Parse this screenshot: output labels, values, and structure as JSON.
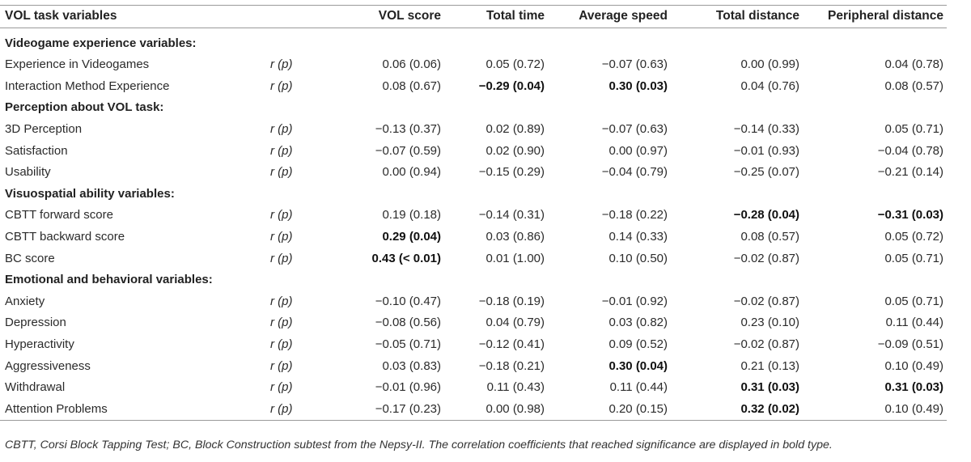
{
  "table": {
    "headers": [
      "VOL task variables",
      "",
      "VOL score",
      "Total time",
      "Average speed",
      "Total distance",
      "Peripheral distance"
    ],
    "sections": [
      {
        "title": "Videogame experience variables:",
        "rows": [
          {
            "label": "Experience in Videogames",
            "stat": "r (p)",
            "values": [
              "0.06 (0.06)",
              "0.05 (0.72)",
              "−0.07 (0.63)",
              "0.00 (0.99)",
              "0.04 (0.78)"
            ],
            "bold": [
              false,
              false,
              false,
              false,
              false
            ]
          },
          {
            "label": "Interaction Method Experience",
            "stat": "r (p)",
            "values": [
              "0.08 (0.67)",
              "−0.29 (0.04)",
              "0.30 (0.03)",
              "0.04 (0.76)",
              "0.08 (0.57)"
            ],
            "bold": [
              false,
              true,
              true,
              false,
              false
            ]
          }
        ]
      },
      {
        "title": "Perception about VOL task:",
        "rows": [
          {
            "label": "3D Perception",
            "stat": "r (p)",
            "values": [
              "−0.13 (0.37)",
              "0.02 (0.89)",
              "−0.07 (0.63)",
              "−0.14 (0.33)",
              "0.05 (0.71)"
            ],
            "bold": [
              false,
              false,
              false,
              false,
              false
            ]
          },
          {
            "label": "Satisfaction",
            "stat": "r (p)",
            "values": [
              "−0.07 (0.59)",
              "0.02 (0.90)",
              "0.00 (0.97)",
              "−0.01 (0.93)",
              "−0.04 (0.78)"
            ],
            "bold": [
              false,
              false,
              false,
              false,
              false
            ]
          },
          {
            "label": "Usability",
            "stat": "r (p)",
            "values": [
              "0.00 (0.94)",
              "−0.15 (0.29)",
              "−0.04 (0.79)",
              "−0.25 (0.07)",
              "−0.21 (0.14)"
            ],
            "bold": [
              false,
              false,
              false,
              false,
              false
            ]
          }
        ]
      },
      {
        "title": "Visuospatial ability variables:",
        "rows": [
          {
            "label": "CBTT forward score",
            "stat": "r (p)",
            "values": [
              "0.19 (0.18)",
              "−0.14 (0.31)",
              "−0.18 (0.22)",
              "−0.28 (0.04)",
              "−0.31 (0.03)"
            ],
            "bold": [
              false,
              false,
              false,
              true,
              true
            ]
          },
          {
            "label": "CBTT backward score",
            "stat": "r (p)",
            "values": [
              "0.29 (0.04)",
              "0.03 (0.86)",
              "0.14 (0.33)",
              "0.08 (0.57)",
              "0.05 (0.72)"
            ],
            "bold": [
              true,
              false,
              false,
              false,
              false
            ]
          },
          {
            "label": "BC score",
            "stat": "r (p)",
            "values": [
              "0.43 (< 0.01)",
              "0.01 (1.00)",
              "0.10 (0.50)",
              "−0.02 (0.87)",
              "0.05 (0.71)"
            ],
            "bold": [
              true,
              false,
              false,
              false,
              false
            ]
          }
        ]
      },
      {
        "title": "Emotional and behavioral variables:",
        "rows": [
          {
            "label": "Anxiety",
            "stat": "r (p)",
            "values": [
              "−0.10 (0.47)",
              "−0.18 (0.19)",
              "−0.01 (0.92)",
              "−0.02 (0.87)",
              "0.05 (0.71)"
            ],
            "bold": [
              false,
              false,
              false,
              false,
              false
            ]
          },
          {
            "label": "Depression",
            "stat": "r (p)",
            "values": [
              "−0.08 (0.56)",
              "0.04 (0.79)",
              "0.03 (0.82)",
              "0.23 (0.10)",
              "0.11 (0.44)"
            ],
            "bold": [
              false,
              false,
              false,
              false,
              false
            ]
          },
          {
            "label": "Hyperactivity",
            "stat": "r (p)",
            "values": [
              "−0.05 (0.71)",
              "−0.12 (0.41)",
              "0.09 (0.52)",
              "−0.02 (0.87)",
              "−0.09 (0.51)"
            ],
            "bold": [
              false,
              false,
              false,
              false,
              false
            ]
          },
          {
            "label": "Aggressiveness",
            "stat": "r (p)",
            "values": [
              "0.03 (0.83)",
              "−0.18 (0.21)",
              "0.30 (0.04)",
              "0.21 (0.13)",
              "0.10 (0.49)"
            ],
            "bold": [
              false,
              false,
              true,
              false,
              false
            ]
          },
          {
            "label": "Withdrawal",
            "stat": "r (p)",
            "values": [
              "−0.01 (0.96)",
              "0.11 (0.43)",
              "0.11 (0.44)",
              "0.31 (0.03)",
              "0.31 (0.03)"
            ],
            "bold": [
              false,
              false,
              false,
              true,
              true
            ]
          },
          {
            "label": "Attention Problems",
            "stat": "r (p)",
            "values": [
              "−0.17 (0.23)",
              "0.00 (0.98)",
              "0.20 (0.15)",
              "0.32 (0.02)",
              "0.10 (0.49)"
            ],
            "bold": [
              false,
              false,
              false,
              true,
              false
            ]
          }
        ]
      }
    ]
  },
  "footnote": "CBTT, Corsi Block Tapping Test; BC, Block Construction subtest from the Nepsy-II. The correlation coefficients that reached significance are displayed in bold type."
}
